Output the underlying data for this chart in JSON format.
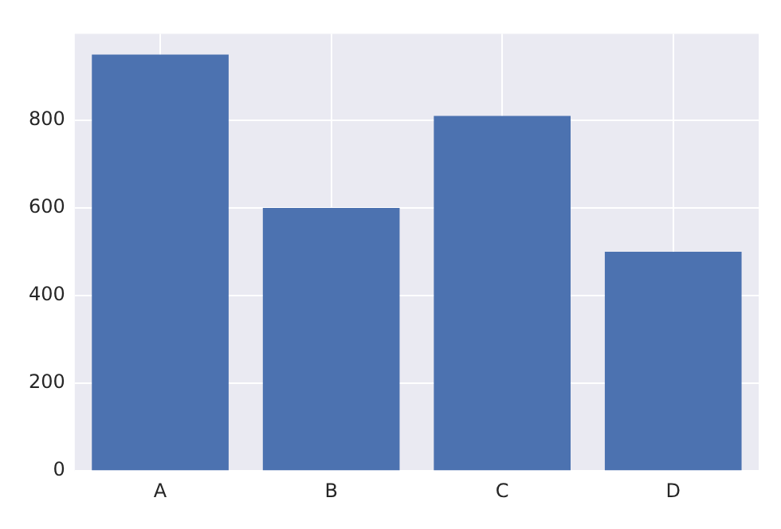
{
  "chart_data": {
    "type": "bar",
    "categories": [
      "A",
      "B",
      "C",
      "D"
    ],
    "values": [
      950,
      600,
      810,
      500
    ],
    "color": "#4c72b0",
    "ylim": [
      0,
      997.5
    ],
    "yticks": [
      0,
      200,
      400,
      600,
      800
    ],
    "grid": true
  }
}
